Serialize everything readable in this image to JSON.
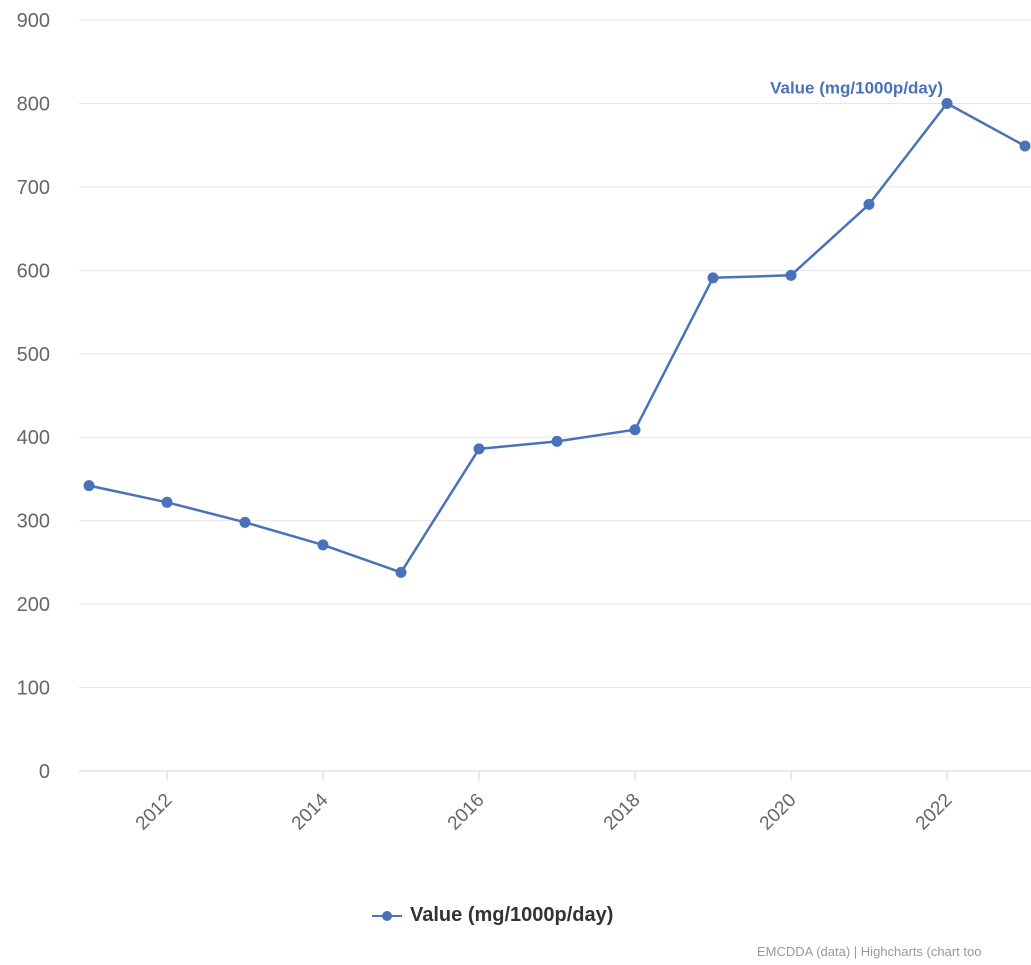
{
  "colors": {
    "series": "#4a72b8",
    "grid": "#e6e6e6",
    "axis": "#ccd6eb",
    "tick_text": "#666666"
  },
  "chart_data": {
    "type": "line",
    "title": "",
    "xlabel": "",
    "ylabel": "",
    "x": [
      2011,
      2012,
      2013,
      2014,
      2015,
      2016,
      2017,
      2018,
      2019,
      2020,
      2021,
      2022,
      2023
    ],
    "xlim": [
      2011,
      2023
    ],
    "x_tick_labels": [
      "2012",
      "2014",
      "2016",
      "2018",
      "2020",
      "2022"
    ],
    "ylim": [
      0,
      900
    ],
    "y_tick_labels": [
      "0",
      "100",
      "200",
      "300",
      "400",
      "500",
      "600",
      "700",
      "800",
      "900"
    ],
    "series": [
      {
        "name": "Value (mg/1000p/day)",
        "values": [
          342,
          322,
          298,
          271,
          238,
          386,
          395,
          409,
          591,
          594,
          679,
          800,
          749
        ]
      }
    ],
    "annotations": [
      {
        "text": "Value (mg/1000p/day)",
        "x": 2022,
        "y": 800
      }
    ],
    "grid": true,
    "legend_position": "bottom-center"
  },
  "legend": {
    "label": "Value (mg/1000p/day)"
  },
  "credits": {
    "text": "EMCDDA (data) | Highcharts (chart too"
  }
}
